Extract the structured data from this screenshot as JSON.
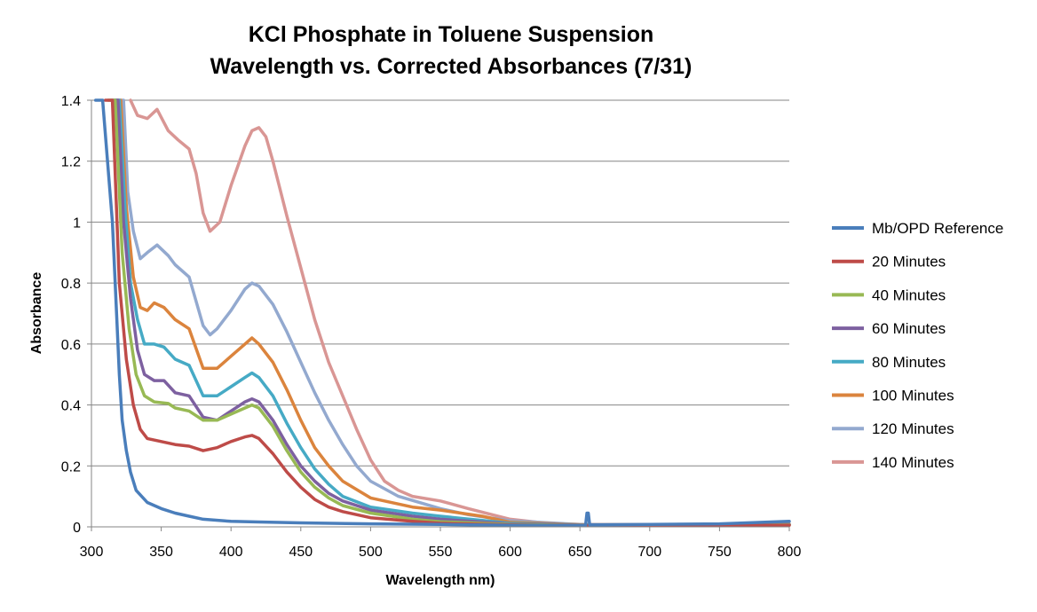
{
  "chart_data": {
    "type": "line",
    "title": "KCl Phosphate in Toluene Suspension",
    "subtitle": "Wavelength vs. Corrected Absorbances (7/31)",
    "xlabel": "Wavelength nm)",
    "ylabel": "Absorbance",
    "xlim": [
      300,
      800
    ],
    "ylim": [
      0,
      1.4
    ],
    "x_ticks": [
      "300",
      "350",
      "400",
      "450",
      "500",
      "550",
      "600",
      "650",
      "700",
      "750",
      "800"
    ],
    "y_ticks": [
      "0",
      "0.2",
      "0.4",
      "0.6",
      "0.8",
      "1",
      "1.2",
      "1.4"
    ],
    "grid": "horizontal",
    "legend_position": "right",
    "series": [
      {
        "name": "Mb/OPD Reference",
        "color": "#4A7EBB",
        "points": [
          [
            303,
            1.4
          ],
          [
            308,
            1.4
          ],
          [
            315,
            1.0
          ],
          [
            318,
            0.7
          ],
          [
            320,
            0.5
          ],
          [
            322,
            0.35
          ],
          [
            325,
            0.25
          ],
          [
            328,
            0.18
          ],
          [
            332,
            0.12
          ],
          [
            340,
            0.08
          ],
          [
            350,
            0.06
          ],
          [
            360,
            0.045
          ],
          [
            370,
            0.035
          ],
          [
            380,
            0.025
          ],
          [
            400,
            0.018
          ],
          [
            420,
            0.016
          ],
          [
            450,
            0.013
          ],
          [
            500,
            0.01
          ],
          [
            550,
            0.008
          ],
          [
            600,
            0.005
          ],
          [
            650,
            0.004
          ],
          [
            654,
            0.004
          ],
          [
            655,
            0.045
          ],
          [
            656,
            0.045
          ],
          [
            657,
            0.006
          ],
          [
            700,
            0.008
          ],
          [
            750,
            0.01
          ],
          [
            800,
            0.018
          ]
        ]
      },
      {
        "name": "20 Minutes",
        "color": "#BE4B48",
        "points": [
          [
            310,
            1.4
          ],
          [
            315,
            1.4
          ],
          [
            320,
            0.8
          ],
          [
            325,
            0.55
          ],
          [
            330,
            0.4
          ],
          [
            335,
            0.32
          ],
          [
            340,
            0.29
          ],
          [
            350,
            0.28
          ],
          [
            360,
            0.27
          ],
          [
            370,
            0.265
          ],
          [
            380,
            0.25
          ],
          [
            390,
            0.26
          ],
          [
            400,
            0.28
          ],
          [
            410,
            0.295
          ],
          [
            415,
            0.3
          ],
          [
            420,
            0.29
          ],
          [
            430,
            0.24
          ],
          [
            440,
            0.18
          ],
          [
            450,
            0.13
          ],
          [
            460,
            0.09
          ],
          [
            470,
            0.065
          ],
          [
            480,
            0.05
          ],
          [
            500,
            0.03
          ],
          [
            530,
            0.018
          ],
          [
            550,
            0.012
          ],
          [
            600,
            0.006
          ],
          [
            650,
            0.004
          ],
          [
            700,
            0.004
          ],
          [
            800,
            0.005
          ]
        ]
      },
      {
        "name": "40 Minutes",
        "color": "#98B954",
        "points": [
          [
            312,
            1.4
          ],
          [
            317,
            1.4
          ],
          [
            322,
            0.9
          ],
          [
            327,
            0.65
          ],
          [
            332,
            0.5
          ],
          [
            338,
            0.43
          ],
          [
            345,
            0.41
          ],
          [
            355,
            0.405
          ],
          [
            360,
            0.39
          ],
          [
            370,
            0.38
          ],
          [
            380,
            0.35
          ],
          [
            390,
            0.35
          ],
          [
            400,
            0.37
          ],
          [
            410,
            0.39
          ],
          [
            415,
            0.4
          ],
          [
            420,
            0.39
          ],
          [
            430,
            0.33
          ],
          [
            440,
            0.25
          ],
          [
            450,
            0.18
          ],
          [
            460,
            0.13
          ],
          [
            470,
            0.095
          ],
          [
            480,
            0.07
          ],
          [
            500,
            0.045
          ],
          [
            530,
            0.025
          ],
          [
            550,
            0.017
          ],
          [
            600,
            0.008
          ],
          [
            650,
            0.005
          ],
          [
            700,
            0.005
          ],
          [
            800,
            0.006
          ]
        ]
      },
      {
        "name": "60 Minutes",
        "color": "#7D60A0",
        "points": [
          [
            314,
            1.4
          ],
          [
            319,
            1.4
          ],
          [
            323,
            1.0
          ],
          [
            328,
            0.75
          ],
          [
            333,
            0.58
          ],
          [
            338,
            0.5
          ],
          [
            345,
            0.48
          ],
          [
            352,
            0.48
          ],
          [
            360,
            0.44
          ],
          [
            370,
            0.43
          ],
          [
            380,
            0.36
          ],
          [
            390,
            0.35
          ],
          [
            400,
            0.38
          ],
          [
            410,
            0.41
          ],
          [
            415,
            0.42
          ],
          [
            420,
            0.41
          ],
          [
            430,
            0.35
          ],
          [
            440,
            0.27
          ],
          [
            450,
            0.2
          ],
          [
            460,
            0.15
          ],
          [
            470,
            0.11
          ],
          [
            480,
            0.085
          ],
          [
            500,
            0.055
          ],
          [
            530,
            0.035
          ],
          [
            550,
            0.025
          ],
          [
            600,
            0.01
          ],
          [
            650,
            0.006
          ],
          [
            700,
            0.006
          ],
          [
            800,
            0.007
          ]
        ]
      },
      {
        "name": "80 Minutes",
        "color": "#46AAC5",
        "points": [
          [
            316,
            1.4
          ],
          [
            320,
            1.4
          ],
          [
            324,
            1.05
          ],
          [
            328,
            0.8
          ],
          [
            333,
            0.68
          ],
          [
            338,
            0.6
          ],
          [
            345,
            0.6
          ],
          [
            352,
            0.59
          ],
          [
            360,
            0.55
          ],
          [
            370,
            0.53
          ],
          [
            380,
            0.43
          ],
          [
            390,
            0.43
          ],
          [
            400,
            0.46
          ],
          [
            410,
            0.49
          ],
          [
            415,
            0.505
          ],
          [
            420,
            0.49
          ],
          [
            430,
            0.43
          ],
          [
            440,
            0.34
          ],
          [
            450,
            0.26
          ],
          [
            460,
            0.19
          ],
          [
            470,
            0.14
          ],
          [
            480,
            0.1
          ],
          [
            500,
            0.065
          ],
          [
            530,
            0.045
          ],
          [
            550,
            0.035
          ],
          [
            600,
            0.012
          ],
          [
            650,
            0.006
          ],
          [
            700,
            0.006
          ],
          [
            800,
            0.007
          ]
        ]
      },
      {
        "name": "100 Minutes",
        "color": "#DB843D",
        "points": [
          [
            317,
            1.4
          ],
          [
            321,
            1.4
          ],
          [
            325,
            1.05
          ],
          [
            330,
            0.82
          ],
          [
            335,
            0.72
          ],
          [
            340,
            0.71
          ],
          [
            345,
            0.735
          ],
          [
            352,
            0.72
          ],
          [
            360,
            0.68
          ],
          [
            370,
            0.65
          ],
          [
            380,
            0.52
          ],
          [
            390,
            0.52
          ],
          [
            400,
            0.56
          ],
          [
            410,
            0.6
          ],
          [
            415,
            0.62
          ],
          [
            420,
            0.6
          ],
          [
            430,
            0.54
          ],
          [
            440,
            0.45
          ],
          [
            450,
            0.35
          ],
          [
            460,
            0.26
          ],
          [
            470,
            0.2
          ],
          [
            480,
            0.15
          ],
          [
            500,
            0.095
          ],
          [
            530,
            0.065
          ],
          [
            550,
            0.055
          ],
          [
            580,
            0.035
          ],
          [
            600,
            0.015
          ],
          [
            650,
            0.007
          ],
          [
            700,
            0.007
          ],
          [
            800,
            0.008
          ]
        ]
      },
      {
        "name": "120 Minutes",
        "color": "#93A9CF",
        "points": [
          [
            319,
            1.4
          ],
          [
            323,
            1.4
          ],
          [
            326,
            1.1
          ],
          [
            330,
            0.97
          ],
          [
            335,
            0.88
          ],
          [
            340,
            0.9
          ],
          [
            347,
            0.925
          ],
          [
            355,
            0.89
          ],
          [
            360,
            0.86
          ],
          [
            370,
            0.82
          ],
          [
            380,
            0.66
          ],
          [
            385,
            0.63
          ],
          [
            390,
            0.65
          ],
          [
            400,
            0.71
          ],
          [
            410,
            0.78
          ],
          [
            415,
            0.8
          ],
          [
            420,
            0.79
          ],
          [
            430,
            0.73
          ],
          [
            440,
            0.64
          ],
          [
            450,
            0.54
          ],
          [
            460,
            0.44
          ],
          [
            470,
            0.35
          ],
          [
            480,
            0.27
          ],
          [
            490,
            0.2
          ],
          [
            500,
            0.15
          ],
          [
            520,
            0.1
          ],
          [
            550,
            0.06
          ],
          [
            570,
            0.04
          ],
          [
            600,
            0.02
          ],
          [
            650,
            0.008
          ],
          [
            700,
            0.008
          ],
          [
            800,
            0.008
          ]
        ]
      },
      {
        "name": "140 Minutes",
        "color": "#D99694",
        "points": [
          [
            328,
            1.4
          ],
          [
            333,
            1.35
          ],
          [
            340,
            1.34
          ],
          [
            347,
            1.37
          ],
          [
            355,
            1.3
          ],
          [
            362,
            1.27
          ],
          [
            370,
            1.24
          ],
          [
            375,
            1.16
          ],
          [
            380,
            1.03
          ],
          [
            385,
            0.97
          ],
          [
            392,
            1.0
          ],
          [
            400,
            1.12
          ],
          [
            410,
            1.25
          ],
          [
            415,
            1.3
          ],
          [
            420,
            1.31
          ],
          [
            425,
            1.28
          ],
          [
            430,
            1.2
          ],
          [
            440,
            1.02
          ],
          [
            450,
            0.85
          ],
          [
            460,
            0.68
          ],
          [
            470,
            0.54
          ],
          [
            480,
            0.43
          ],
          [
            490,
            0.32
          ],
          [
            500,
            0.22
          ],
          [
            510,
            0.15
          ],
          [
            520,
            0.12
          ],
          [
            530,
            0.1
          ],
          [
            550,
            0.085
          ],
          [
            570,
            0.06
          ],
          [
            600,
            0.025
          ],
          [
            630,
            0.01
          ],
          [
            650,
            0.008
          ],
          [
            700,
            0.008
          ],
          [
            800,
            0.008
          ]
        ]
      }
    ]
  }
}
